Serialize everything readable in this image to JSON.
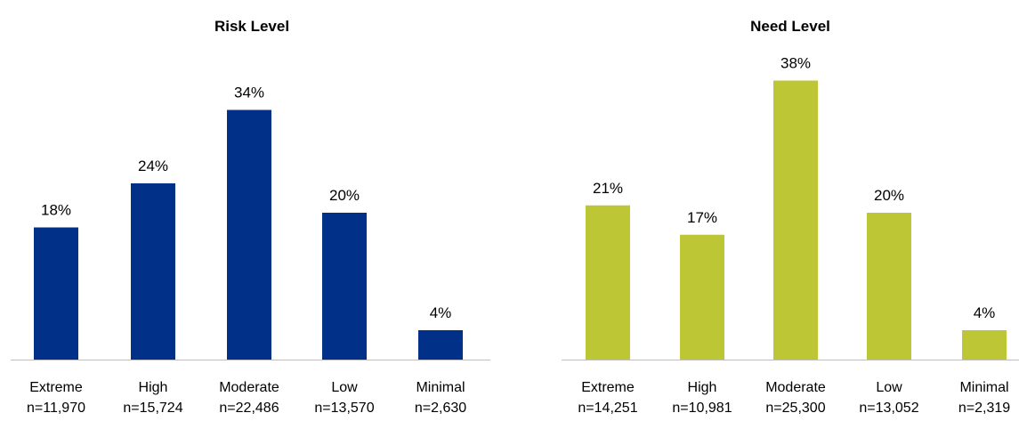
{
  "chart_data": [
    {
      "type": "bar",
      "title": "Risk Level",
      "categories": [
        "Extreme",
        "High",
        "Moderate",
        "Low",
        "Minimal"
      ],
      "counts": [
        "n=11,970",
        "n=15,724",
        "n=22,486",
        "n=13,570",
        "n=2,630"
      ],
      "values": [
        18,
        24,
        34,
        20,
        4
      ],
      "value_labels": [
        "18%",
        "24%",
        "34%",
        "20%",
        "4%"
      ],
      "unit": "%",
      "ylim": [
        0,
        40
      ],
      "grid": false,
      "legend": "none",
      "color": "#003087"
    },
    {
      "type": "bar",
      "title": "Need Level",
      "categories": [
        "Extreme",
        "High",
        "Moderate",
        "Low",
        "Minimal"
      ],
      "counts": [
        "n=14,251",
        "n=10,981",
        "n=25,300",
        "n=13,052",
        "n=2,319"
      ],
      "values": [
        21,
        17,
        38,
        20,
        4
      ],
      "value_labels": [
        "21%",
        "17%",
        "38%",
        "20%",
        "4%"
      ],
      "unit": "%",
      "ylim": [
        0,
        40
      ],
      "grid": false,
      "legend": "none",
      "color": "#BDC634"
    }
  ]
}
